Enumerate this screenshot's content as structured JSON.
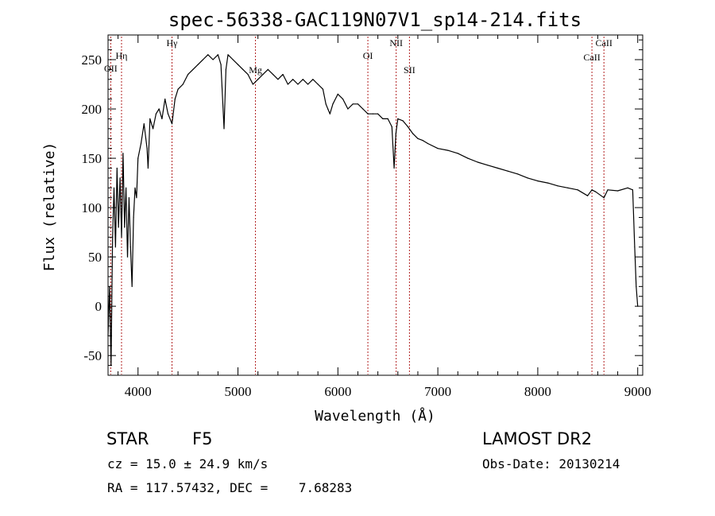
{
  "chart_data": {
    "type": "line",
    "title": "spec-56338-GAC119N07V1_sp14-214.fits",
    "xlabel": "Wavelength (Å)",
    "ylabel": "Flux (relative)",
    "xlim": [
      3700,
      9050
    ],
    "ylim": [
      -70,
      275
    ],
    "xticks": [
      4000,
      5000,
      6000,
      7000,
      8000,
      9000
    ],
    "yticks": [
      -50,
      0,
      50,
      100,
      150,
      200,
      250
    ],
    "grid": false,
    "series": [
      {
        "x": [
          3700,
          3715,
          3730,
          3745,
          3760,
          3775,
          3790,
          3805,
          3820,
          3835,
          3850,
          3865,
          3880,
          3895,
          3910,
          3925,
          3940,
          3955,
          3970,
          3985,
          4000,
          4030,
          4060,
          4090,
          4101,
          4120,
          4150,
          4180,
          4210,
          4240,
          4270,
          4300,
          4340,
          4370,
          4400,
          4450,
          4500,
          4550,
          4600,
          4650,
          4700,
          4750,
          4800,
          4830,
          4861,
          4880,
          4900,
          4950,
          5000,
          5050,
          5100,
          5150,
          5200,
          5250,
          5300,
          5350,
          5400,
          5450,
          5500,
          5550,
          5600,
          5650,
          5700,
          5750,
          5800,
          5850,
          5880,
          5900,
          5920,
          5950,
          6000,
          6050,
          6100,
          6150,
          6200,
          6250,
          6300,
          6350,
          6400,
          6450,
          6500,
          6540,
          6563,
          6580,
          6600,
          6650,
          6700,
          6750,
          6800,
          6850,
          6900,
          7000,
          7100,
          7200,
          7300,
          7400,
          7500,
          7600,
          7700,
          7800,
          7900,
          8000,
          8100,
          8200,
          8300,
          8400,
          8498,
          8542,
          8580,
          8662,
          8700,
          8800,
          8900,
          8950,
          8970,
          8985,
          9000
        ],
        "y": [
          -30,
          20,
          -60,
          70,
          120,
          60,
          140,
          80,
          130,
          70,
          155,
          80,
          120,
          50,
          110,
          60,
          20,
          90,
          120,
          110,
          150,
          165,
          185,
          160,
          140,
          190,
          180,
          195,
          200,
          190,
          210,
          195,
          185,
          210,
          220,
          225,
          235,
          240,
          245,
          250,
          255,
          250,
          255,
          245,
          180,
          240,
          255,
          250,
          245,
          240,
          235,
          225,
          230,
          235,
          240,
          235,
          230,
          235,
          225,
          230,
          225,
          230,
          225,
          230,
          225,
          220,
          205,
          200,
          195,
          205,
          215,
          210,
          200,
          205,
          205,
          200,
          195,
          195,
          195,
          190,
          190,
          182,
          140,
          175,
          190,
          188,
          182,
          175,
          170,
          168,
          165,
          160,
          158,
          155,
          150,
          146,
          143,
          140,
          137,
          134,
          130,
          127,
          125,
          122,
          120,
          118,
          112,
          118,
          116,
          110,
          118,
          117,
          120,
          118,
          60,
          20,
          0
        ]
      }
    ],
    "lines": [
      {
        "label": "OII",
        "wavelength": 3727
      },
      {
        "label": "Hη",
        "wavelength": 3835
      },
      {
        "label": "Hγ",
        "wavelength": 4340
      },
      {
        "label": "Mg",
        "wavelength": 5175
      },
      {
        "label": "OI",
        "wavelength": 6300
      },
      {
        "label": "NII",
        "wavelength": 6583
      },
      {
        "label": "SII",
        "wavelength": 6716
      },
      {
        "label": "CaII",
        "wavelength": 8542
      },
      {
        "label": "CaII",
        "wavelength": 8662
      }
    ]
  },
  "info": {
    "class": "STAR",
    "subclass": "F5",
    "survey": "LAMOST DR2",
    "cz": "cz = 15.0 ± 24.9 km/s",
    "obs_date": "Obs-Date: 20130214",
    "radec": "RA = 117.57432, DEC =    7.68283"
  }
}
